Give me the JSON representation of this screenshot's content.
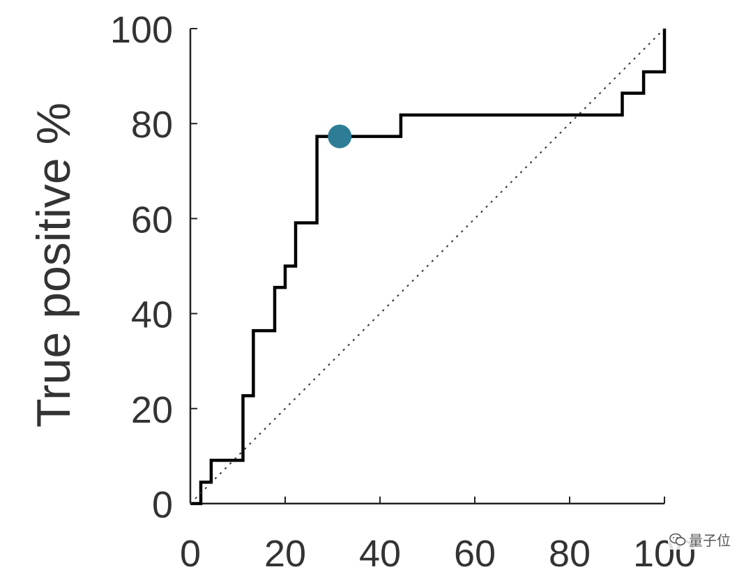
{
  "chart_data": {
    "type": "line",
    "title": "",
    "xlabel": "",
    "ylabel": "True positive %",
    "xlim": [
      0,
      100
    ],
    "ylim": [
      0,
      100
    ],
    "xticks": [
      0,
      20,
      40,
      60,
      80,
      100
    ],
    "yticks": [
      0,
      20,
      40,
      60,
      80,
      100
    ],
    "grid": false,
    "series": [
      {
        "style": "step",
        "color": "#000000",
        "points": [
          [
            0,
            0
          ],
          [
            2.2,
            0
          ],
          [
            2.2,
            4.5
          ],
          [
            4.4,
            4.5
          ],
          [
            4.4,
            9.1
          ],
          [
            11.1,
            9.1
          ],
          [
            11.1,
            22.7
          ],
          [
            13.3,
            22.7
          ],
          [
            13.3,
            36.4
          ],
          [
            17.8,
            36.4
          ],
          [
            17.8,
            45.5
          ],
          [
            20,
            45.5
          ],
          [
            20,
            50
          ],
          [
            22.2,
            50
          ],
          [
            22.2,
            59.1
          ],
          [
            26.7,
            59.1
          ],
          [
            26.7,
            77.3
          ],
          [
            44.4,
            77.3
          ],
          [
            44.4,
            81.8
          ],
          [
            91.1,
            81.8
          ],
          [
            91.1,
            86.4
          ],
          [
            95.6,
            86.4
          ],
          [
            95.6,
            90.9
          ],
          [
            100,
            90.9
          ],
          [
            100,
            100
          ]
        ]
      },
      {
        "style": "dotted",
        "color": "#333333",
        "points": [
          [
            0,
            0
          ],
          [
            100,
            100
          ]
        ]
      }
    ],
    "marker": {
      "x": 31.5,
      "y": 77.3,
      "color": "#2e7d96"
    }
  },
  "watermark": {
    "text": "量子位",
    "icon": "wechat-icon"
  }
}
